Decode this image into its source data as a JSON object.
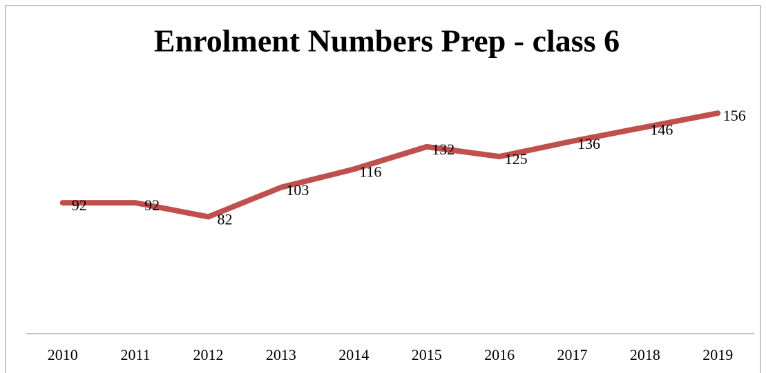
{
  "chart_data": {
    "type": "line",
    "title": "Enrolment Numbers  Prep - class 6",
    "categories": [
      "2010",
      "2011",
      "2012",
      "2013",
      "2014",
      "2015",
      "2016",
      "2017",
      "2018",
      "2019"
    ],
    "series": [
      {
        "color": "#c0504d",
        "values": [
          92,
          92,
          82,
          103,
          116,
          132,
          125,
          136,
          146,
          156
        ]
      }
    ],
    "ylim": [
      0,
      160
    ]
  }
}
